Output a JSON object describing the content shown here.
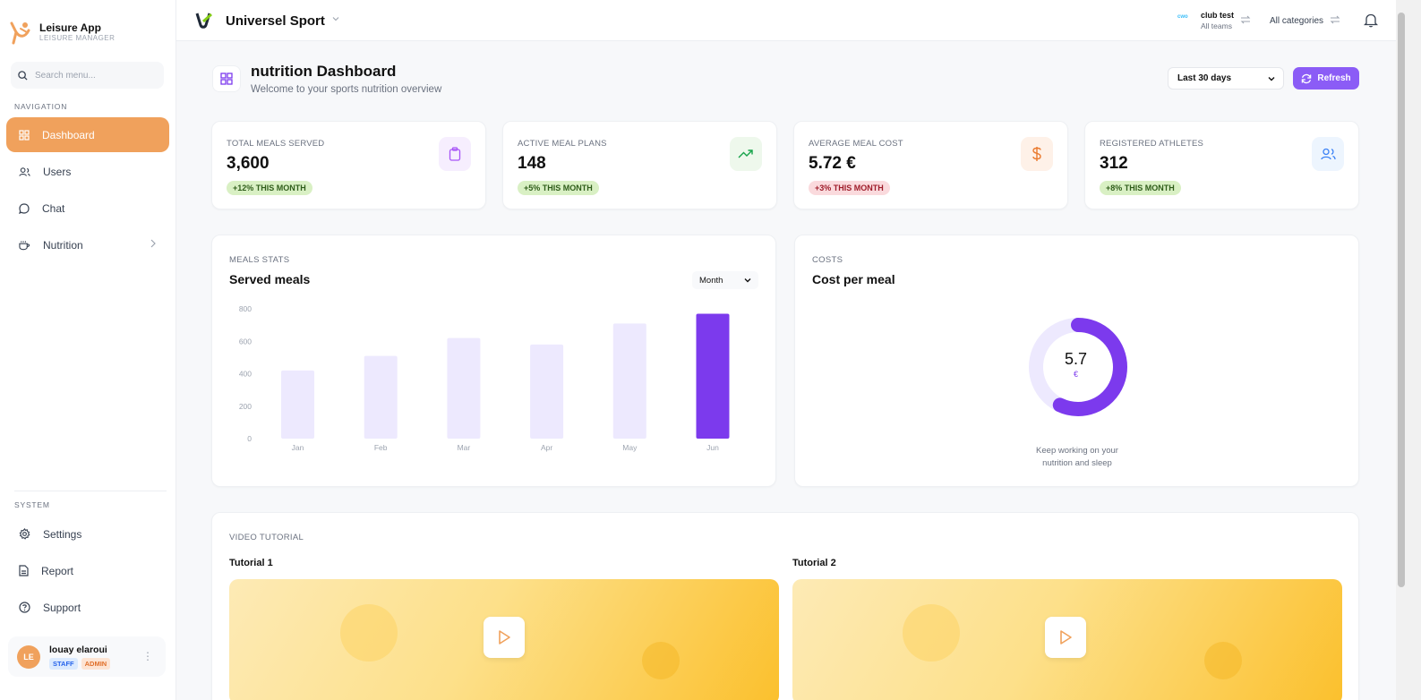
{
  "app": {
    "name": "Leisure App",
    "subtitle": "LEISURE MANAGER"
  },
  "search": {
    "placeholder": "Search menu..."
  },
  "nav": {
    "section_label": "NAVIGATION",
    "items": [
      {
        "label": "Dashboard",
        "icon": "grid-icon",
        "active": true
      },
      {
        "label": "Users",
        "icon": "users-icon"
      },
      {
        "label": "Chat",
        "icon": "chat-icon"
      },
      {
        "label": "Nutrition",
        "icon": "cup-icon"
      }
    ]
  },
  "system": {
    "section_label": "SYSTEM",
    "items": [
      {
        "label": "Settings",
        "icon": "gear-icon"
      },
      {
        "label": "Report",
        "icon": "document-icon"
      },
      {
        "label": "Support",
        "icon": "help-icon"
      }
    ]
  },
  "user": {
    "initials": "LE",
    "name": "louay elaroui",
    "roles": [
      "STAFF",
      "ADMIN"
    ]
  },
  "topbar": {
    "org_name": "Universel Sport",
    "club_logo_text": "cwo",
    "club_name": "club test",
    "club_sub": "All teams",
    "categories": "All categories"
  },
  "header": {
    "title": "nutrition Dashboard",
    "subtitle": "Welcome to your sports nutrition overview",
    "period": "Last 30 days",
    "refresh_label": "Refresh"
  },
  "stats": [
    {
      "label": "TOTAL MEALS SERVED",
      "value": "3,600",
      "change": "+12% THIS MONTH",
      "trend": "up",
      "icon": "clipboard-icon",
      "icon_color": "#a855f7",
      "icon_bg": "#f6eefe"
    },
    {
      "label": "ACTIVE MEAL PLANS",
      "value": "148",
      "change": "+5% THIS MONTH",
      "trend": "up",
      "icon": "trending-up-icon",
      "icon_color": "#16a34a",
      "icon_bg": "#eef8ec"
    },
    {
      "label": "AVERAGE MEAL COST",
      "value": "5.72 €",
      "change": "+3% THIS MONTH",
      "trend": "down",
      "icon": "dollar-icon",
      "icon_color": "#ea7a2e",
      "icon_bg": "#fef1e8"
    },
    {
      "label": "REGISTERED ATHLETES",
      "value": "312",
      "change": "+8% THIS MONTH",
      "trend": "up",
      "icon": "users-icon",
      "icon_color": "#3b82f6",
      "icon_bg": "#edf5fe"
    }
  ],
  "meals_panel": {
    "label": "MEALS STATS",
    "title": "Served meals",
    "select": "Month"
  },
  "chart_data": {
    "type": "bar",
    "categories": [
      "Jan",
      "Feb",
      "Mar",
      "Apr",
      "May",
      "Jun"
    ],
    "values": [
      420,
      510,
      620,
      580,
      710,
      770
    ],
    "highlight_index": 5,
    "ylim": [
      0,
      800
    ],
    "yticks": [
      800,
      600,
      400,
      200,
      0
    ],
    "colors": {
      "bar": "#ede9fe",
      "highlight": "#7c3aed"
    }
  },
  "cost_panel": {
    "label": "COSTS",
    "title": "Cost per meal",
    "value": "5.7",
    "unit": "€",
    "progress": 0.57,
    "caption_line1": "Keep working on your",
    "caption_line2": "nutrition and sleep",
    "colors": {
      "track": "#ede9fe",
      "fill": "#7c3aed"
    }
  },
  "tutorials": {
    "label": "VIDEO TUTORIAL",
    "items": [
      {
        "title": "Tutorial 1"
      },
      {
        "title": "Tutorial 2"
      }
    ]
  }
}
